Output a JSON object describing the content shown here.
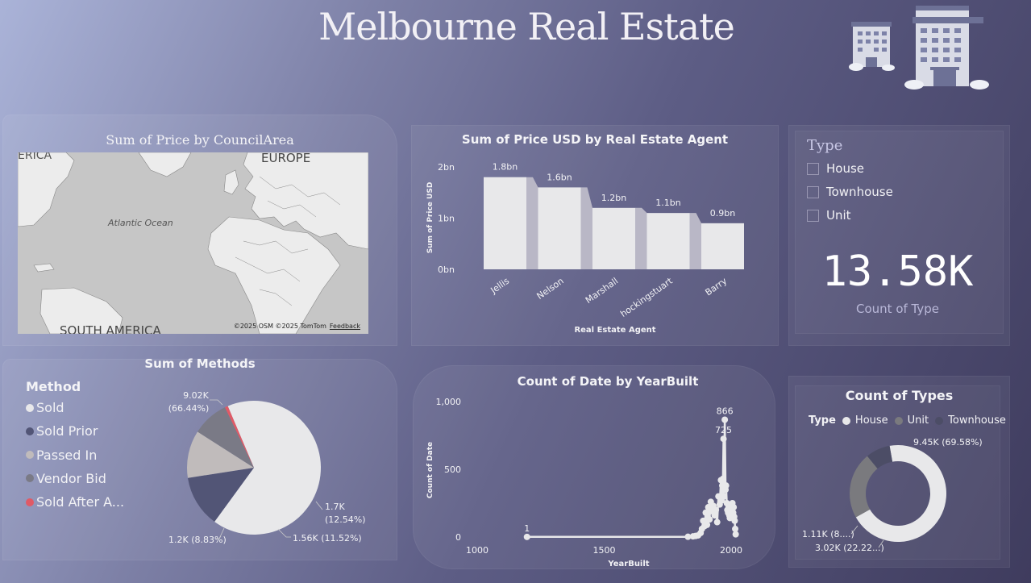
{
  "dashboard": {
    "title": "Melbourne Real Estate"
  },
  "map": {
    "title": "Sum of Price by CouncilArea",
    "labels": {
      "europe": "EUROPE",
      "atlantic": "Atlantic Ocean",
      "south_america": "SOUTH AMERICA",
      "north_america_fragment": "ERICA"
    },
    "attribution": "©2025 OSM  ©2025 TomTom",
    "feedback": "Feedback"
  },
  "type_slicer": {
    "title": "Type",
    "options": [
      "House",
      "Townhouse",
      "Unit"
    ]
  },
  "kpi": {
    "value": "13.58K",
    "label": "Count of Type"
  },
  "methods_legend": {
    "title": "Method",
    "items": [
      {
        "label": "Sold",
        "color": "#e8e8ea"
      },
      {
        "label": "Sold Prior",
        "color": "#525576"
      },
      {
        "label": "Passed In",
        "color": "#c0bbbb"
      },
      {
        "label": "Vendor Bid",
        "color": "#7a7a86"
      },
      {
        "label": "Sold After A...",
        "color": "#e05a66"
      }
    ]
  },
  "donut_legend": {
    "title": "Type",
    "items": [
      {
        "label": "House",
        "color": "#e8e8ea"
      },
      {
        "label": "Unit",
        "color": "#7a7a7e"
      },
      {
        "label": "Townhouse",
        "color": "#4c4d66"
      }
    ]
  },
  "chart_data": [
    {
      "type": "bar",
      "title": "Sum of Price USD by Real Estate Agent",
      "xlabel": "Real Estate Agent",
      "ylabel": "Sum of Price USD",
      "categories": [
        "Jellis",
        "Nelson",
        "Marshall",
        "hockingstuart",
        "Barry"
      ],
      "values": [
        1.8,
        1.6,
        1.2,
        1.1,
        0.9
      ],
      "data_labels": [
        "1.8bn",
        "1.6bn",
        "1.2bn",
        "1.1bn",
        "0.9bn"
      ],
      "yticks": [
        "0bn",
        "1bn",
        "2bn"
      ],
      "ylim": [
        0,
        2
      ],
      "color": "#e8e8ea"
    },
    {
      "type": "pie",
      "title": "Sum of Methods",
      "slices": [
        {
          "name": "Sold",
          "value": 9.02,
          "label": "9.02K\n(66.44%)",
          "color": "#e8e8ea"
        },
        {
          "name": "Sold Prior",
          "value": 1.7,
          "label": "1.7K\n(12.54%)",
          "color": "#525576"
        },
        {
          "name": "Passed In",
          "value": 1.56,
          "label": "1.56K (11.52%)",
          "color": "#c0bbbb"
        },
        {
          "name": "Vendor Bid",
          "value": 1.2,
          "label": "1.2K (8.83%)",
          "color": "#7a7a86"
        },
        {
          "name": "Sold After A...",
          "value": 0.1,
          "label": "",
          "color": "#e05a66"
        }
      ]
    },
    {
      "type": "line",
      "title": "Count of Date by YearBuilt",
      "xlabel": "YearBuilt",
      "ylabel": "Count of Date",
      "xlim": [
        1000,
        2000
      ],
      "ylim": [
        0,
        1000
      ],
      "xticks": [
        "1000",
        "1500",
        "2000"
      ],
      "yticks": [
        "0",
        "500",
        "1,000"
      ],
      "points": [
        [
          1196,
          1
        ],
        [
          1830,
          2
        ],
        [
          1850,
          5
        ],
        [
          1860,
          8
        ],
        [
          1870,
          12
        ],
        [
          1880,
          30
        ],
        [
          1885,
          60
        ],
        [
          1890,
          120
        ],
        [
          1895,
          80
        ],
        [
          1900,
          180
        ],
        [
          1905,
          90
        ],
        [
          1910,
          220
        ],
        [
          1915,
          130
        ],
        [
          1920,
          260
        ],
        [
          1925,
          190
        ],
        [
          1930,
          230
        ],
        [
          1935,
          160
        ],
        [
          1940,
          200
        ],
        [
          1945,
          110
        ],
        [
          1950,
          300
        ],
        [
          1955,
          240
        ],
        [
          1960,
          420
        ],
        [
          1963,
          270
        ],
        [
          1965,
          380
        ],
        [
          1968,
          430
        ],
        [
          1970,
          725
        ],
        [
          1972,
          300
        ],
        [
          1975,
          866
        ],
        [
          1978,
          350
        ],
        [
          1980,
          380
        ],
        [
          1983,
          250
        ],
        [
          1985,
          200
        ],
        [
          1988,
          180
        ],
        [
          1990,
          230
        ],
        [
          1993,
          160
        ],
        [
          1995,
          140
        ],
        [
          1998,
          180
        ],
        [
          2000,
          240
        ],
        [
          2003,
          200
        ],
        [
          2005,
          250
        ],
        [
          2008,
          180
        ],
        [
          2010,
          220
        ],
        [
          2012,
          150
        ],
        [
          2014,
          120
        ],
        [
          2016,
          60
        ],
        [
          2018,
          20
        ]
      ],
      "data_labels": [
        {
          "x": 1196,
          "text": "1"
        },
        {
          "x": 1975,
          "text": "866"
        },
        {
          "x": 1970,
          "text": "725"
        }
      ]
    },
    {
      "type": "pie",
      "donut": true,
      "title": "Count of Types",
      "slices": [
        {
          "name": "House",
          "value": 9.45,
          "label": "9.45K (69.58%)",
          "color": "#e8e8ea"
        },
        {
          "name": "Unit",
          "value": 3.02,
          "label": "3.02K (22.22...)",
          "color": "#7a7a7e"
        },
        {
          "name": "Townhouse",
          "value": 1.11,
          "label": "1.11K (8....)",
          "color": "#4c4d66"
        }
      ]
    }
  ]
}
